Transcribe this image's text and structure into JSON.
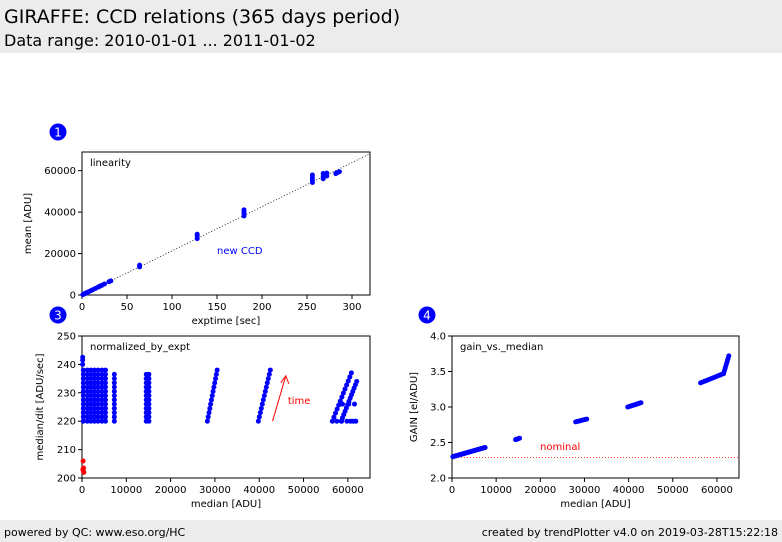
{
  "header": {
    "title": "GIRAFFE: CCD relations (365 days period)",
    "subtitle": "Data range: 2010-01-01 ... 2011-01-02"
  },
  "footer": {
    "left": "powered by QC: www.eso.org/HC",
    "right": "created by trendPlotter v4.0 on 2019-03-28T15:22:18"
  },
  "colors": {
    "data": "#0000ff",
    "annotation": "#ff0000",
    "fit_line": "#000000"
  },
  "chart_data": [
    {
      "panel": "1",
      "type": "scatter",
      "title": "linearity",
      "xlabel": "exptime [sec]",
      "ylabel": "mean [ADU]",
      "xlim": [
        0,
        320
      ],
      "ylim": [
        0,
        69000
      ],
      "xticks": [
        0,
        50,
        100,
        150,
        200,
        250,
        300
      ],
      "yticks": [
        0,
        20000,
        40000,
        60000
      ],
      "annotation": "new CCD",
      "reference_line": {
        "style": "dotted",
        "slope": 213,
        "intercept": 0
      },
      "points": [
        [
          1,
          200
        ],
        [
          2,
          420
        ],
        [
          3,
          640
        ],
        [
          4,
          850
        ],
        [
          5,
          1060
        ],
        [
          6,
          1280
        ],
        [
          8,
          1700
        ],
        [
          10,
          2120
        ],
        [
          12,
          2560
        ],
        [
          15,
          3200
        ],
        [
          18,
          3830
        ],
        [
          20,
          4260
        ],
        [
          22,
          4680
        ],
        [
          25,
          5320
        ],
        [
          30,
          6390
        ],
        [
          32,
          6800
        ],
        [
          64,
          13600
        ],
        [
          64,
          14400
        ],
        [
          128,
          27200
        ],
        [
          128,
          28500
        ],
        [
          128,
          29300
        ],
        [
          180,
          38100
        ],
        [
          180,
          39200
        ],
        [
          180,
          40300
        ],
        [
          180,
          41100
        ],
        [
          256,
          54300
        ],
        [
          256,
          55400
        ],
        [
          256,
          56600
        ],
        [
          256,
          57900
        ],
        [
          268,
          56100
        ],
        [
          268,
          57200
        ],
        [
          268,
          58600
        ],
        [
          272,
          57400
        ],
        [
          272,
          58800
        ],
        [
          282,
          58600
        ],
        [
          284,
          59100
        ],
        [
          286,
          59500
        ]
      ]
    },
    {
      "panel": "3",
      "type": "scatter",
      "title": "normalized_by_expt",
      "xlabel": "median [ADU]",
      "ylabel": "median/dit [ADU/sec]",
      "xlim": [
        0,
        65000
      ],
      "ylim": [
        200,
        250
      ],
      "xticks": [
        0,
        10000,
        20000,
        30000,
        40000,
        50000,
        60000
      ],
      "yticks": [
        200,
        210,
        220,
        230,
        240,
        250
      ],
      "annotation": "time",
      "arrow": {
        "from": [
          43000,
          220
        ],
        "to": [
          46000,
          236
        ]
      },
      "column_groups": [
        {
          "x": [
            300,
            1200,
            2000,
            2800,
            3600,
            4500,
            5300
          ],
          "ymin": 220,
          "ymax": 238
        },
        {
          "x": [
            7300
          ],
          "ymin": 220,
          "ymax": 237
        },
        {
          "x": [
            14500,
            15100
          ],
          "ymin": 220,
          "ymax": 237
        }
      ],
      "diagonal_groups": [
        {
          "x0": 28300,
          "x1": 30500,
          "ymin": 220,
          "ymax": 238
        },
        {
          "x0": 39800,
          "x1": 42500,
          "ymin": 220,
          "ymax": 238
        },
        {
          "x0": 56500,
          "x1": 60800,
          "ymin": 220,
          "ymax": 237
        },
        {
          "x0": 58500,
          "x1": 62000,
          "ymin": 220,
          "ymax": 234
        }
      ],
      "red_points": [
        [
          200,
          203
        ],
        [
          300,
          202.5
        ],
        [
          350,
          203.5
        ],
        [
          250,
          206
        ],
        [
          400,
          202
        ]
      ]
    },
    {
      "panel": "4",
      "type": "scatter",
      "title": "gain_vs._median",
      "xlabel": "median [ADU]",
      "ylabel": "GAIN [el/ADU]",
      "xlim": [
        0,
        65000
      ],
      "ylim": [
        2.0,
        4.0
      ],
      "xticks": [
        0,
        10000,
        20000,
        30000,
        40000,
        50000,
        60000
      ],
      "yticks": [
        "2.0",
        "2.5",
        "3.0",
        "3.5",
        "4.0"
      ],
      "annotation": "nominal",
      "reference_line": {
        "style": "dotted",
        "y": 2.29
      },
      "curve_segments": [
        {
          "x0": 200,
          "x1": 7500,
          "y0": 2.3,
          "y1": 2.43,
          "n": 32
        },
        {
          "x0": 14400,
          "x1": 15300,
          "y0": 2.54,
          "y1": 2.56,
          "n": 5
        },
        {
          "x0": 28000,
          "x1": 30500,
          "y0": 2.79,
          "y1": 2.83,
          "n": 8
        },
        {
          "x0": 39800,
          "x1": 42800,
          "y0": 3.0,
          "y1": 3.06,
          "n": 9
        },
        {
          "x0": 56300,
          "x1": 61500,
          "y0": 3.34,
          "y1": 3.47,
          "n": 12
        },
        {
          "x0": 61500,
          "x1": 62700,
          "y0": 3.47,
          "y1": 3.72,
          "n": 8
        }
      ]
    }
  ],
  "markers": {
    "panel1": "1",
    "panel3": "3",
    "panel4": "4"
  }
}
